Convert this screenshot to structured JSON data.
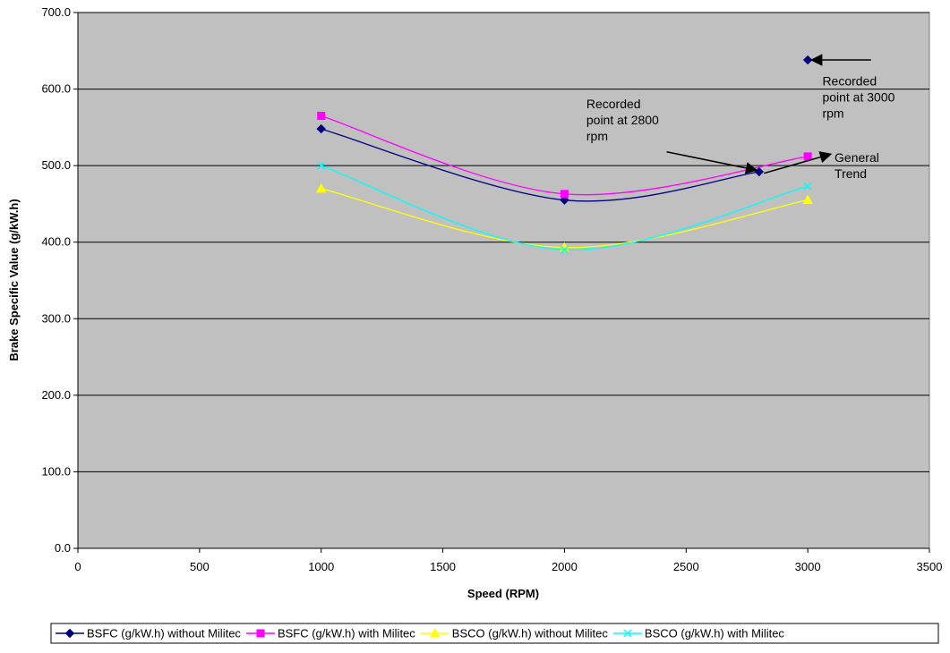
{
  "chart_data": {
    "type": "line",
    "title": "",
    "xlabel": "Speed (RPM)",
    "ylabel": "Brake Specific Value (g/kW.h)",
    "xlim": [
      0,
      3500
    ],
    "ylim": [
      0,
      700
    ],
    "x_ticks": [
      0,
      500,
      1000,
      1500,
      2000,
      2500,
      3000,
      3500
    ],
    "y_ticks": [
      0,
      100,
      200,
      300,
      400,
      500,
      600,
      700
    ],
    "x_tick_labels": [
      "0",
      "500",
      "1000",
      "1500",
      "2000",
      "2500",
      "3000",
      "3500"
    ],
    "y_tick_labels": [
      "0.0",
      "100.0",
      "200.0",
      "300.0",
      "400.0",
      "500.0",
      "600.0",
      "700.0"
    ],
    "grid": "horizontal",
    "plot_background": "#C0C0C0",
    "legend_position": "bottom",
    "series": [
      {
        "name": "BSFC (g/kW.h) without Militec",
        "color": "#000080",
        "marker": "diamond",
        "points": [
          {
            "x": 1000,
            "y": 548
          },
          {
            "x": 2000,
            "y": 455
          },
          {
            "x": 2800,
            "y": 492
          }
        ],
        "extra_points": [
          {
            "x": 3000,
            "y": 638
          }
        ]
      },
      {
        "name": "BSFC (g/kW.h) with Militec",
        "color": "#FF00FF",
        "marker": "square",
        "points": [
          {
            "x": 1000,
            "y": 565
          },
          {
            "x": 2000,
            "y": 463
          },
          {
            "x": 3000,
            "y": 512
          }
        ]
      },
      {
        "name": "BSCO (g/kW.h) without Militec",
        "color": "#FFFF00",
        "marker": "triangle",
        "points": [
          {
            "x": 1000,
            "y": 470
          },
          {
            "x": 2000,
            "y": 393
          },
          {
            "x": 3000,
            "y": 455
          }
        ]
      },
      {
        "name": "BSCO (g/kW.h) with Militec",
        "color": "#00FFFF",
        "marker": "x",
        "points": [
          {
            "x": 1000,
            "y": 500
          },
          {
            "x": 2000,
            "y": 390
          },
          {
            "x": 3000,
            "y": 473
          }
        ]
      }
    ],
    "annotations": [
      {
        "id": "ann-3000",
        "lines": [
          "Recorded",
          "point at 3000",
          "rpm"
        ],
        "text_pos": {
          "x": 3060,
          "y": 605
        },
        "arrow_from": {
          "x": 3260,
          "y": 638
        },
        "arrow_to": {
          "x": 3015,
          "y": 638
        }
      },
      {
        "id": "ann-2800",
        "lines": [
          "Recorded",
          "point at 2800",
          "rpm"
        ],
        "text_pos": {
          "x": 2090,
          "y": 575
        },
        "arrow_from": {
          "x": 2420,
          "y": 518
        },
        "arrow_to": {
          "x": 2790,
          "y": 494
        }
      },
      {
        "id": "ann-trend",
        "lines": [
          "General",
          "Trend"
        ],
        "text_pos": {
          "x": 3110,
          "y": 505
        },
        "arrow_from": {
          "x": 2820,
          "y": 490
        },
        "arrow_to": {
          "x": 3095,
          "y": 515
        }
      }
    ]
  }
}
